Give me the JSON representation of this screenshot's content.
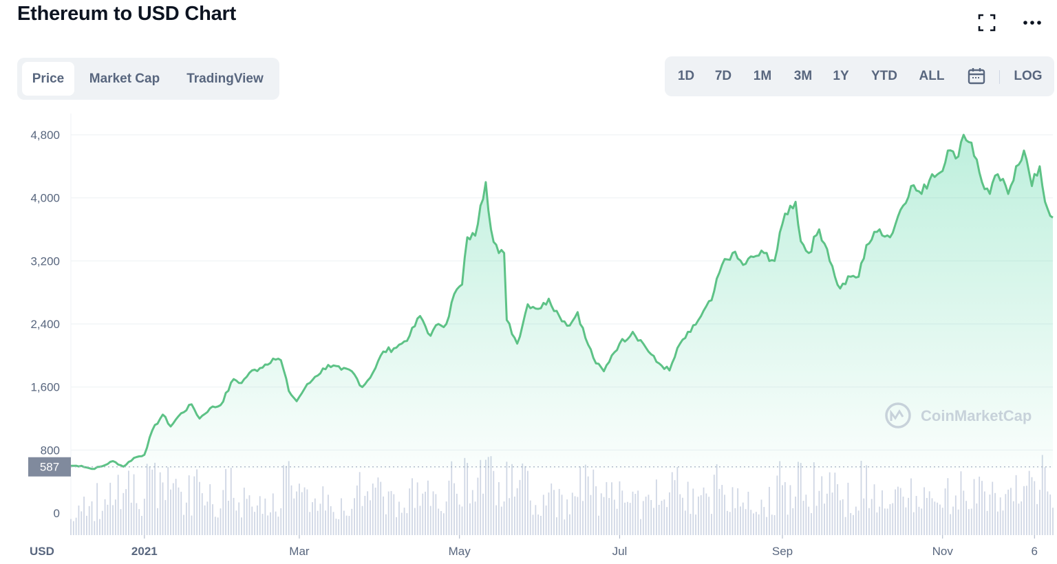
{
  "header": {
    "title": "Ethereum to USD Chart",
    "expand_icon": "fullscreen-icon",
    "more_icon": "more-horizontal-icon"
  },
  "view_tabs": [
    {
      "label": "Price",
      "active": true
    },
    {
      "label": "Market Cap",
      "active": false
    },
    {
      "label": "TradingView",
      "active": false
    }
  ],
  "time_ranges": [
    "1D",
    "7D",
    "1M",
    "3M",
    "1Y",
    "YTD",
    "ALL"
  ],
  "calendar_icon": "calendar-icon",
  "log_label": "LOG",
  "watermark": "CoinMarketCap",
  "colors": {
    "line": "#5dc286",
    "fill": "#16c784",
    "down": "#ea3943",
    "text_muted": "#58667e",
    "grid": "#eff2f5"
  },
  "chart_data": {
    "type": "area",
    "currency_label": "USD",
    "y_ticks": [
      0,
      800,
      1600,
      2400,
      3200,
      4000,
      4800
    ],
    "y_tick_labels": [
      "0",
      "800",
      "1,600",
      "2,400",
      "3,200",
      "4,000",
      "4,800"
    ],
    "ylim": [
      0,
      4950
    ],
    "x_range": [
      "2020-12-04",
      "2021-12-13"
    ],
    "x_ticks": [
      {
        "date": "2021-01-01",
        "label": "2021"
      },
      {
        "date": "2021-03-01",
        "label": "Mar"
      },
      {
        "date": "2021-05-01",
        "label": "May"
      },
      {
        "date": "2021-07-01",
        "label": "Jul"
      },
      {
        "date": "2021-09-01",
        "label": "Sep"
      },
      {
        "date": "2021-11-01",
        "label": "Nov"
      },
      {
        "date": "2021-12-06",
        "label": "6"
      }
    ],
    "reference_price": {
      "value": 587,
      "label": "587"
    },
    "series": [
      {
        "values": [
          [
            "2020-12-04",
            600
          ],
          [
            "2020-12-08",
            600
          ],
          [
            "2020-12-12",
            560
          ],
          [
            "2020-12-16",
            595
          ],
          [
            "2020-12-20",
            660
          ],
          [
            "2020-12-24",
            590
          ],
          [
            "2020-12-28",
            700
          ],
          [
            "2021-01-01",
            740
          ],
          [
            "2021-01-04",
            1050
          ],
          [
            "2021-01-08",
            1250
          ],
          [
            "2021-01-11",
            1100
          ],
          [
            "2021-01-14",
            1230
          ],
          [
            "2021-01-19",
            1380
          ],
          [
            "2021-01-22",
            1200
          ],
          [
            "2021-01-26",
            1330
          ],
          [
            "2021-01-30",
            1370
          ],
          [
            "2021-02-04",
            1700
          ],
          [
            "2021-02-07",
            1650
          ],
          [
            "2021-02-10",
            1780
          ],
          [
            "2021-02-14",
            1840
          ],
          [
            "2021-02-19",
            1960
          ],
          [
            "2021-02-22",
            1940
          ],
          [
            "2021-02-25",
            1550
          ],
          [
            "2021-02-28",
            1420
          ],
          [
            "2021-03-03",
            1580
          ],
          [
            "2021-03-07",
            1730
          ],
          [
            "2021-03-12",
            1880
          ],
          [
            "2021-03-17",
            1820
          ],
          [
            "2021-03-21",
            1800
          ],
          [
            "2021-03-25",
            1600
          ],
          [
            "2021-03-29",
            1780
          ],
          [
            "2021-04-02",
            2050
          ],
          [
            "2021-04-06",
            2090
          ],
          [
            "2021-04-09",
            2150
          ],
          [
            "2021-04-12",
            2250
          ],
          [
            "2021-04-16",
            2500
          ],
          [
            "2021-04-20",
            2250
          ],
          [
            "2021-04-23",
            2400
          ],
          [
            "2021-04-26",
            2400
          ],
          [
            "2021-04-29",
            2780
          ],
          [
            "2021-05-02",
            2900
          ],
          [
            "2021-05-04",
            3500
          ],
          [
            "2021-05-07",
            3520
          ],
          [
            "2021-05-09",
            3900
          ],
          [
            "2021-05-11",
            4200
          ],
          [
            "2021-05-13",
            3600
          ],
          [
            "2021-05-16",
            3300
          ],
          [
            "2021-05-18",
            3300
          ],
          [
            "2021-05-19",
            2450
          ],
          [
            "2021-05-23",
            2150
          ],
          [
            "2021-05-27",
            2650
          ],
          [
            "2021-06-01",
            2600
          ],
          [
            "2021-06-04",
            2720
          ],
          [
            "2021-06-08",
            2500
          ],
          [
            "2021-06-12",
            2380
          ],
          [
            "2021-06-15",
            2550
          ],
          [
            "2021-06-18",
            2220
          ],
          [
            "2021-06-22",
            1900
          ],
          [
            "2021-06-25",
            1800
          ],
          [
            "2021-06-28",
            2000
          ],
          [
            "2021-07-01",
            2150
          ],
          [
            "2021-07-06",
            2300
          ],
          [
            "2021-07-10",
            2150
          ],
          [
            "2021-07-15",
            1920
          ],
          [
            "2021-07-20",
            1810
          ],
          [
            "2021-07-24",
            2150
          ],
          [
            "2021-07-28",
            2300
          ],
          [
            "2021-08-01",
            2500
          ],
          [
            "2021-08-05",
            2700
          ],
          [
            "2021-08-09",
            3150
          ],
          [
            "2021-08-13",
            3300
          ],
          [
            "2021-08-17",
            3150
          ],
          [
            "2021-08-21",
            3250
          ],
          [
            "2021-08-25",
            3300
          ],
          [
            "2021-08-29",
            3200
          ],
          [
            "2021-09-02",
            3800
          ],
          [
            "2021-09-06",
            3950
          ],
          [
            "2021-09-08",
            3450
          ],
          [
            "2021-09-11",
            3300
          ],
          [
            "2021-09-15",
            3600
          ],
          [
            "2021-09-18",
            3350
          ],
          [
            "2021-09-21",
            3000
          ],
          [
            "2021-09-23",
            2850
          ],
          [
            "2021-09-27",
            3000
          ],
          [
            "2021-09-30",
            3000
          ],
          [
            "2021-10-03",
            3400
          ],
          [
            "2021-10-08",
            3600
          ],
          [
            "2021-10-12",
            3500
          ],
          [
            "2021-10-16",
            3850
          ],
          [
            "2021-10-20",
            4150
          ],
          [
            "2021-10-24",
            4050
          ],
          [
            "2021-10-28",
            4300
          ],
          [
            "2021-10-31",
            4320
          ],
          [
            "2021-11-03",
            4600
          ],
          [
            "2021-11-06",
            4500
          ],
          [
            "2021-11-09",
            4800
          ],
          [
            "2021-11-12",
            4700
          ],
          [
            "2021-11-16",
            4200
          ],
          [
            "2021-11-19",
            4050
          ],
          [
            "2021-11-22",
            4300
          ],
          [
            "2021-11-26",
            4050
          ],
          [
            "2021-11-29",
            4400
          ],
          [
            "2021-12-02",
            4600
          ],
          [
            "2021-12-05",
            4150
          ],
          [
            "2021-12-08",
            4400
          ],
          [
            "2021-12-10",
            3950
          ],
          [
            "2021-12-13",
            3750
          ]
        ]
      }
    ],
    "volume": {
      "shown": true,
      "color": "#cfd6e4"
    },
    "grid": true
  }
}
